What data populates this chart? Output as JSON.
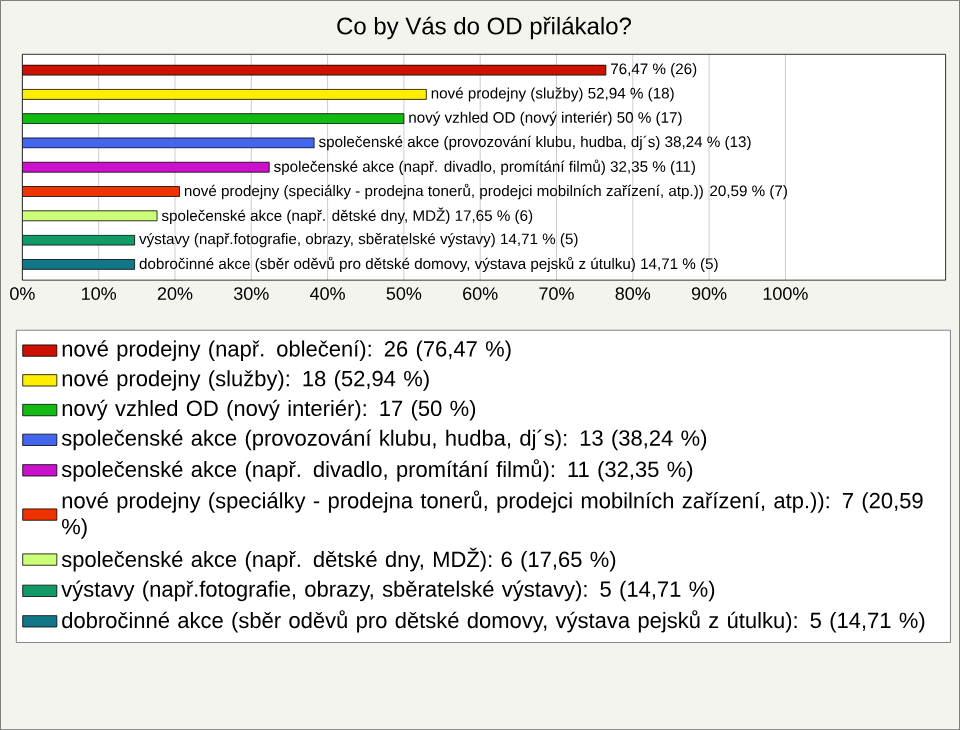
{
  "chart_data": {
    "type": "bar",
    "orientation": "horizontal",
    "title": "Co by Vás do OD přilákalo?",
    "categories": [
      null
    ],
    "series": [
      {
        "name": "nové prodejny (např. oblečení): 26 (76,47 %)",
        "color": "#cc1100",
        "values": [
          76.47
        ],
        "value_labels": [
          "76,47 % (26)"
        ]
      },
      {
        "name": "nové prodejny (služby): 18 (52,94 %)",
        "color": "#ffee00",
        "values": [
          52.94
        ],
        "value_labels": [
          "nové prodejny (služby) 52,94 % (18)"
        ]
      },
      {
        "name": "nový vzhled OD (nový interiér): 17 (50 %)",
        "color": "#11bb11",
        "values": [
          50
        ],
        "value_labels": [
          "nový vzhled OD (nový interiér) 50 % (17)"
        ]
      },
      {
        "name": "společenské akce (provozování klubu, hudba, dj´s): 13 (38,24 %)",
        "color": "#4466ee",
        "values": [
          38.24
        ],
        "value_labels": [
          "společenské akce (provozování klubu, hudba, dj´s) 38,24 % (13)"
        ]
      },
      {
        "name": "společenské akce (např. divadlo, promítání filmů): 11 (32,35 %)",
        "color": "#cc11cc",
        "values": [
          32.35
        ],
        "value_labels": [
          "společenské akce (např. divadlo, promítání filmů) 32,35 % (11)"
        ]
      },
      {
        "name": "nové prodejny (speciálky - prodejna tonerů, prodejci mobilních zařízení, atp.)): 7 (20,59 %)",
        "color": "#ee3300",
        "values": [
          20.59
        ],
        "value_labels": [
          "nové prodejny (speciálky - prodejna tonerů, prodejci mobilních zařízení, atp.)) 20,59 % (7)"
        ]
      },
      {
        "name": "společenské akce (např. dětské dny, MDŽ): 6 (17,65 %)",
        "color": "#ccff77",
        "values": [
          17.65
        ],
        "value_labels": [
          "společenské akce (např. dětské dny, MDŽ) 17,65 % (6)"
        ]
      },
      {
        "name": "výstavy (např.fotografie, obrazy, sběratelské výstavy): 5 (14,71 %)",
        "color": "#119966",
        "values": [
          14.71
        ],
        "value_labels": [
          "výstavy (např.fotografie, obrazy, sběratelské výstavy) 14,71 % (5)"
        ]
      },
      {
        "name": "dobročinné akce (sběr oděvů pro dětské domovy, výstava pejsků z útulku): 5 (14,71 %)",
        "color": "#117788",
        "values": [
          14.71
        ],
        "value_labels": [
          "dobročinné akce (sběr oděvů pro dětské domovy, výstava pejsků z útulku) 14,71 % (5)"
        ]
      }
    ],
    "xlim": [
      0,
      121
    ],
    "xticks": [
      {
        "value": 0,
        "label": "0%"
      },
      {
        "value": 10,
        "label": "10%"
      },
      {
        "value": 20,
        "label": "20%"
      },
      {
        "value": 30,
        "label": "30%"
      },
      {
        "value": 40,
        "label": "40%"
      },
      {
        "value": 50,
        "label": "50%"
      },
      {
        "value": 60,
        "label": "60%"
      },
      {
        "value": 70,
        "label": "70%"
      },
      {
        "value": 80,
        "label": "80%"
      },
      {
        "value": 90,
        "label": "90%"
      },
      {
        "value": 100,
        "label": "100%"
      }
    ],
    "grid": "x",
    "legend": "bottom",
    "tick_labels": "x"
  }
}
